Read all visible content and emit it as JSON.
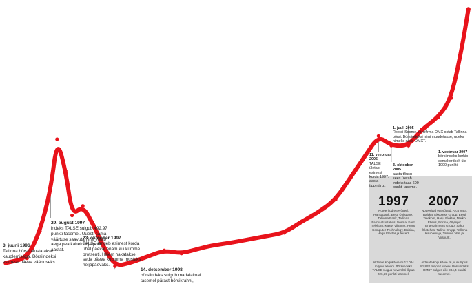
{
  "chart_data": {
    "type": "line",
    "title": "",
    "xlabel": "",
    "ylabel": "",
    "x": [
      1996.4,
      1996.9,
      1997.2,
      1997.45,
      1997.6,
      1997.8,
      1997.95,
      1998.2,
      1998.45,
      1998.65,
      1998.95,
      1999.3,
      1999.7,
      2000.1,
      2000.5,
      2000.9,
      2001.2,
      2001.7,
      2002.1,
      2002.5,
      2002.9,
      2003.3,
      2003.7,
      2004.1,
      2004.5,
      2004.8,
      2005.1,
      2005.4,
      2005.8,
      2006.1,
      2006.5,
      2006.8,
      2007.05,
      2007.2
    ],
    "series": [
      {
        "color": "#e8131b",
        "values": [
          100,
          115,
          200,
          330,
          490,
          390,
          250,
          280,
          220,
          160,
          90,
          100,
          120,
          140,
          130,
          145,
          155,
          165,
          175,
          185,
          195,
          230,
          260,
          300,
          380,
          440,
          500,
          470,
          470,
          520,
          560,
          620,
          780,
          900
        ]
      }
    ],
    "ylim": [
      60,
      920
    ],
    "xlim": [
      1996.3,
      2007.25
    ]
  },
  "annotations": [
    {
      "date": "3. juuni 1996",
      "text": "Tallinna börsil alustatakse kauplemisega. Börsiindeksi esimese päeva väärtuseks",
      "style": "big"
    },
    {
      "date": "29. august 1997",
      "text": "indeks TALSE sulgub 492,97 punkti tasemel. Uuesti sama väärtuse saavutamine võtab aega pea kaheksa ja pool aastat.",
      "style": "big"
    },
    {
      "date": "23. oktoober 1997",
      "text": "TALSE langeb esimest korda ühel päeval enam kui kümme protsenti. Hiljem hakatakse seda päeva kutsuma mustaks neljapäevaks.",
      "style": "big"
    },
    {
      "date": "14. detsember 1998",
      "text": "börsiindeks sulgub madalaimal tasemel pärast börsikrahhi,",
      "style": "big"
    },
    {
      "date": "1. juuli 2005",
      "text": "Rootsi-Soome börsifirma OMX ostab Tallinna börsi. Börsiindeksi nimi muudetakse, uueks nimeks saab OMXT.",
      "style": "small"
    },
    {
      "date": "11. veebruar 2005",
      "text": "TALSE ületab esimest korda 1997. aasta tippmärgi.",
      "style": "small"
    },
    {
      "date": "3. oktoober 2005",
      "text": "aasta tõusu sees ületab indeks taas 600 punkti taseme.",
      "style": "small"
    },
    {
      "date": "1. veebruar 2007",
      "text": "börsiindeks kerkib esmakordselt üle 1000 punkti.",
      "style": "small"
    }
  ],
  "compare": [
    {
      "year": "1997",
      "text": "Noteeritud ettevõtted: Hansapank, Eesti Ühispank, Tallinna Pank, Tallinna Farmaatsiatehas, Norma, Eesti Telekom, Kalev, Viisnurk, Pernu Computer Technology, Baltika, Harju Elekter ja teised.",
      "stats": "Aktsiate kogukäive oli 12 084 miljonit krooni. Börsiindeks TALSE sulgus novembri lõpus 226,59 punkti tasemel."
    },
    {
      "year": "2007",
      "text": "Noteeritud ettevõtted: Arco Vara, Baltika, Ekspress Grupp, Eesti Telekom, Harju Elekter, Merko Ehitus, Norma, Olympic Entertainment Group, Saku Õlletehas, Tallink Grupp, Tallinna Kaubamaja, Tallinna Vesi ja Viisnurk.",
      "stats": "Aktsiate kogukäive oli juuni lõpus 81,832 miljonit krooni. Börsiindeks OMXT sulgus eile 904,4 punkti tasemel."
    }
  ]
}
